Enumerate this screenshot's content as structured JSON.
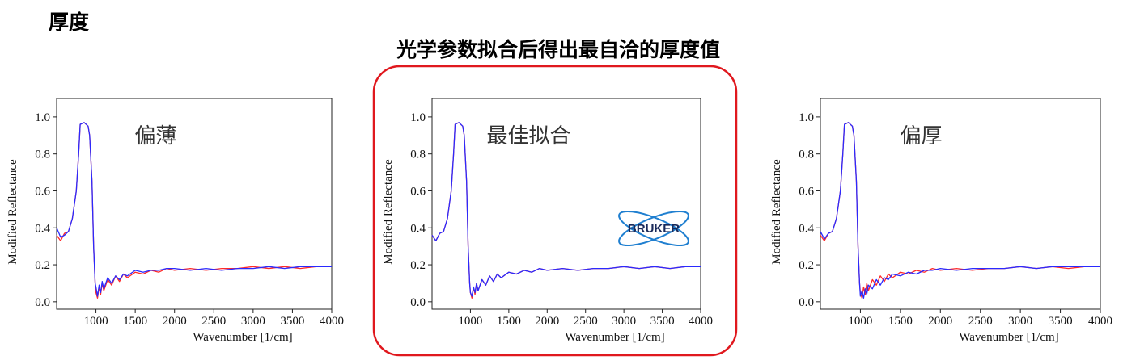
{
  "header": {
    "title": "厚度",
    "subtitle": "光学参数拟合后得出最自洽的厚度值"
  },
  "logo": "BRUKER",
  "chart_data": [
    {
      "type": "line",
      "annotation": "偏薄",
      "xlabel": "Wavenumber [1/cm]",
      "ylabel": "Modified Reflectance",
      "xlim": [
        500,
        4000
      ],
      "ylim": [
        -0.04,
        1.1
      ],
      "xticks": [
        1000,
        1500,
        2000,
        2500,
        3000,
        3500,
        4000
      ],
      "yticks": [
        {
          "value": 0,
          "label": "0.0"
        },
        0.2,
        0.4,
        0.6,
        0.8,
        {
          "value": 1,
          "label": "1.0"
        }
      ],
      "x": [
        500,
        550,
        600,
        650,
        700,
        750,
        780,
        800,
        850,
        900,
        920,
        950,
        970,
        990,
        1000,
        1020,
        1040,
        1060,
        1080,
        1100,
        1150,
        1200,
        1250,
        1300,
        1350,
        1400,
        1500,
        1600,
        1700,
        1800,
        1900,
        2000,
        2200,
        2400,
        2600,
        2800,
        3000,
        3200,
        3400,
        3600,
        3800,
        4000
      ],
      "series": [
        {
          "color": "#ff2a2a",
          "values": [
            0.36,
            0.33,
            0.37,
            0.38,
            0.45,
            0.6,
            0.8,
            0.96,
            0.97,
            0.95,
            0.9,
            0.65,
            0.3,
            0.1,
            0.05,
            0.02,
            0.08,
            0.04,
            0.1,
            0.06,
            0.12,
            0.09,
            0.14,
            0.11,
            0.15,
            0.13,
            0.16,
            0.15,
            0.17,
            0.16,
            0.18,
            0.17,
            0.18,
            0.17,
            0.18,
            0.18,
            0.19,
            0.18,
            0.19,
            0.18,
            0.19,
            0.19
          ]
        },
        {
          "color": "#2a2aff",
          "values": [
            0.4,
            0.35,
            0.36,
            0.38,
            0.45,
            0.6,
            0.8,
            0.96,
            0.97,
            0.95,
            0.9,
            0.65,
            0.3,
            0.1,
            0.08,
            0.03,
            0.09,
            0.05,
            0.11,
            0.07,
            0.13,
            0.1,
            0.14,
            0.12,
            0.15,
            0.14,
            0.17,
            0.16,
            0.17,
            0.17,
            0.18,
            0.18,
            0.17,
            0.18,
            0.17,
            0.18,
            0.18,
            0.19,
            0.18,
            0.19,
            0.19,
            0.19
          ]
        }
      ]
    },
    {
      "type": "line",
      "annotation": "最佳拟合",
      "xlabel": "Wavenumber [1/cm]",
      "ylabel": "Modified Reflectance",
      "xlim": [
        500,
        4000
      ],
      "ylim": [
        -0.04,
        1.1
      ],
      "xticks": [
        1000,
        1500,
        2000,
        2500,
        3000,
        3500,
        4000
      ],
      "yticks": [
        {
          "value": 0,
          "label": "0.0"
        },
        0.2,
        0.4,
        0.6,
        0.8,
        {
          "value": 1,
          "label": "1.0"
        }
      ],
      "x": [
        500,
        550,
        600,
        650,
        700,
        750,
        780,
        800,
        850,
        900,
        920,
        950,
        970,
        990,
        1000,
        1020,
        1040,
        1060,
        1080,
        1100,
        1150,
        1200,
        1250,
        1300,
        1350,
        1400,
        1500,
        1600,
        1700,
        1800,
        1900,
        2000,
        2200,
        2400,
        2600,
        2800,
        3000,
        3200,
        3400,
        3600,
        3800,
        4000
      ],
      "series": [
        {
          "color": "#ff2a2a",
          "values": [
            0.36,
            0.33,
            0.37,
            0.38,
            0.45,
            0.6,
            0.8,
            0.96,
            0.97,
            0.95,
            0.9,
            0.65,
            0.3,
            0.1,
            0.05,
            0.02,
            0.08,
            0.04,
            0.1,
            0.06,
            0.12,
            0.09,
            0.14,
            0.11,
            0.15,
            0.13,
            0.16,
            0.15,
            0.17,
            0.16,
            0.18,
            0.17,
            0.18,
            0.17,
            0.18,
            0.18,
            0.19,
            0.18,
            0.19,
            0.18,
            0.19,
            0.19
          ]
        },
        {
          "color": "#2a2aff",
          "values": [
            0.36,
            0.33,
            0.37,
            0.38,
            0.45,
            0.6,
            0.8,
            0.96,
            0.97,
            0.95,
            0.9,
            0.65,
            0.3,
            0.1,
            0.05,
            0.03,
            0.08,
            0.05,
            0.1,
            0.06,
            0.12,
            0.09,
            0.14,
            0.11,
            0.15,
            0.13,
            0.16,
            0.15,
            0.17,
            0.16,
            0.18,
            0.17,
            0.18,
            0.17,
            0.18,
            0.18,
            0.19,
            0.18,
            0.19,
            0.18,
            0.19,
            0.19
          ]
        }
      ]
    },
    {
      "type": "line",
      "annotation": "偏厚",
      "xlabel": "Wavenumber [1/cm]",
      "ylabel": "Modified Reflectance",
      "xlim": [
        500,
        4000
      ],
      "ylim": [
        -0.04,
        1.1
      ],
      "xticks": [
        1000,
        1500,
        2000,
        2500,
        3000,
        3500,
        4000
      ],
      "yticks": [
        {
          "value": 0,
          "label": "0.0"
        },
        0.2,
        0.4,
        0.6,
        0.8,
        {
          "value": 1,
          "label": "1.0"
        }
      ],
      "x": [
        500,
        550,
        600,
        650,
        700,
        750,
        780,
        800,
        850,
        900,
        920,
        950,
        970,
        990,
        1000,
        1020,
        1040,
        1060,
        1080,
        1100,
        1150,
        1200,
        1250,
        1300,
        1350,
        1400,
        1500,
        1600,
        1700,
        1800,
        1900,
        2000,
        2200,
        2400,
        2600,
        2800,
        3000,
        3200,
        3400,
        3600,
        3800,
        4000
      ],
      "series": [
        {
          "color": "#ff2a2a",
          "values": [
            0.36,
            0.33,
            0.37,
            0.38,
            0.45,
            0.6,
            0.8,
            0.96,
            0.97,
            0.95,
            0.9,
            0.65,
            0.3,
            0.1,
            0.05,
            0.02,
            0.08,
            0.04,
            0.1,
            0.06,
            0.12,
            0.09,
            0.14,
            0.11,
            0.15,
            0.13,
            0.16,
            0.15,
            0.17,
            0.16,
            0.18,
            0.17,
            0.18,
            0.17,
            0.18,
            0.18,
            0.19,
            0.18,
            0.19,
            0.18,
            0.19,
            0.19
          ]
        },
        {
          "color": "#2a2aff",
          "values": [
            0.38,
            0.34,
            0.37,
            0.38,
            0.45,
            0.6,
            0.8,
            0.96,
            0.97,
            0.95,
            0.9,
            0.65,
            0.3,
            0.1,
            0.03,
            0.06,
            0.02,
            0.07,
            0.04,
            0.09,
            0.07,
            0.12,
            0.09,
            0.13,
            0.12,
            0.15,
            0.14,
            0.16,
            0.15,
            0.17,
            0.17,
            0.18,
            0.17,
            0.18,
            0.18,
            0.18,
            0.19,
            0.18,
            0.19,
            0.19,
            0.19,
            0.19
          ]
        }
      ]
    }
  ]
}
